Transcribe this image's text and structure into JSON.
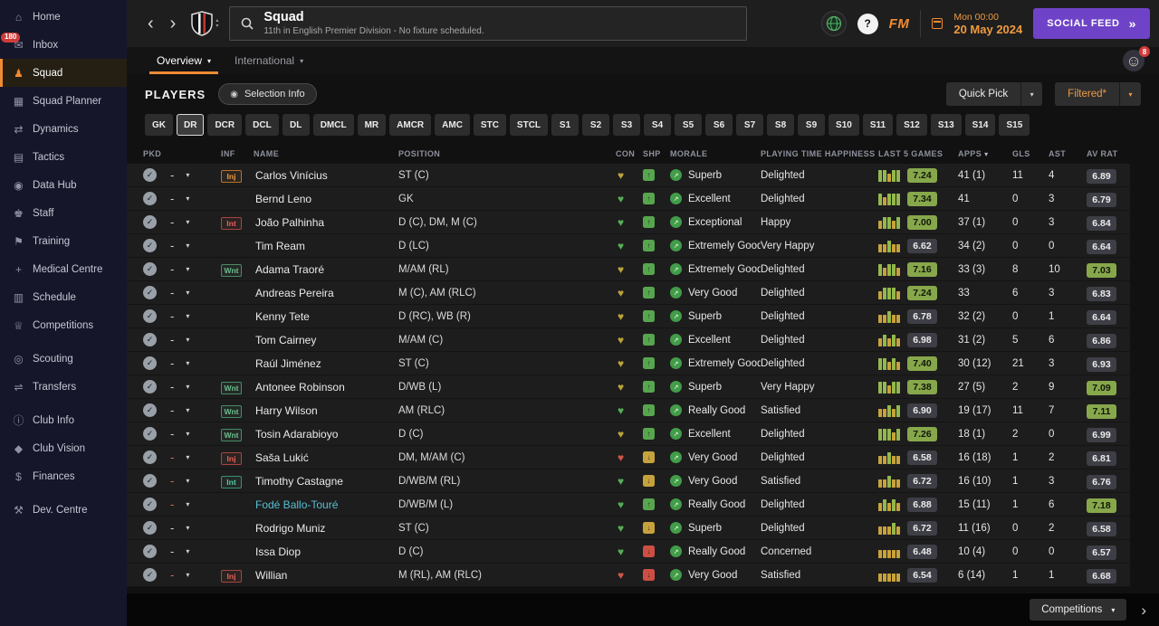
{
  "colors": {
    "accent_orange": "#ef8b33",
    "social_purple": "#6f43c8",
    "badge_green": "#87a74b",
    "morale_green": "#429c49"
  },
  "icons": {
    "back": "‹",
    "forward": "›",
    "chevron_up": "▴",
    "chevron_down": "▾",
    "row_chevron": "▾",
    "sort": "▾",
    "picked": "✓",
    "dash": "-",
    "con_heart": "♥",
    "morale_arrow": "↗",
    "shp_up": "↑",
    "shp_down": "↓",
    "double_chevron": "»",
    "selection_info": "◉",
    "avatar": "☺",
    "next": "›"
  },
  "sidebar": {
    "items": [
      {
        "id": "home",
        "label": "Home",
        "glyph": "⌂"
      },
      {
        "id": "inbox",
        "label": "Inbox",
        "glyph": "✉",
        "badge": "180"
      },
      {
        "id": "squad",
        "label": "Squad",
        "glyph": "♟",
        "active": true
      },
      {
        "id": "squad-planner",
        "label": "Squad Planner",
        "glyph": "▦"
      },
      {
        "id": "dynamics",
        "label": "Dynamics",
        "glyph": "⇄"
      },
      {
        "id": "tactics",
        "label": "Tactics",
        "glyph": "▤"
      },
      {
        "id": "data-hub",
        "label": "Data Hub",
        "glyph": "◉"
      },
      {
        "id": "staff",
        "label": "Staff",
        "glyph": "♚"
      },
      {
        "id": "training",
        "label": "Training",
        "glyph": "⚑"
      },
      {
        "id": "medical-centre",
        "label": "Medical Centre",
        "glyph": "+"
      },
      {
        "id": "schedule",
        "label": "Schedule",
        "glyph": "▥"
      },
      {
        "id": "competitions",
        "label": "Competitions",
        "glyph": "♕"
      },
      {
        "id": "scouting",
        "label": "Scouting",
        "glyph": "◎",
        "gap_before": true
      },
      {
        "id": "transfers",
        "label": "Transfers",
        "glyph": "⇌"
      },
      {
        "id": "club-info",
        "label": "Club Info",
        "glyph": "ⓘ",
        "gap_before": true
      },
      {
        "id": "club-vision",
        "label": "Club Vision",
        "glyph": "◆"
      },
      {
        "id": "finances",
        "label": "Finances",
        "glyph": "$"
      },
      {
        "id": "dev-centre",
        "label": "Dev. Centre",
        "glyph": "⚒",
        "gap_before": true
      }
    ]
  },
  "topbar": {
    "title": "Squad",
    "subtitle": "11th in English Premier Division - No fixture scheduled.",
    "help_icon": "?",
    "fm_logo": "FM",
    "time": "Mon 00:00",
    "date": "20 May 2024",
    "social_feed_label": "SOCIAL FEED"
  },
  "tabbar": {
    "tabs": [
      {
        "label": "Overview",
        "active": true
      },
      {
        "label": "International",
        "active": false
      }
    ],
    "notification_count": "8"
  },
  "toolbar": {
    "players_label": "PLAYERS",
    "selection_info_label": "Selection Info",
    "quick_pick_label": "Quick Pick",
    "filtered_label": "Filtered*"
  },
  "filters": [
    {
      "label": "GK"
    },
    {
      "label": "DR",
      "active": true
    },
    {
      "label": "DCR"
    },
    {
      "label": "DCL"
    },
    {
      "label": "DL"
    },
    {
      "label": "DMCL"
    },
    {
      "label": "MR"
    },
    {
      "label": "AMCR"
    },
    {
      "label": "AMC"
    },
    {
      "label": "STC"
    },
    {
      "label": "STCL"
    },
    {
      "label": "S1"
    },
    {
      "label": "S2"
    },
    {
      "label": "S3"
    },
    {
      "label": "S4"
    },
    {
      "label": "S5"
    },
    {
      "label": "S6"
    },
    {
      "label": "S7"
    },
    {
      "label": "S8"
    },
    {
      "label": "S9"
    },
    {
      "label": "S10"
    },
    {
      "label": "S11"
    },
    {
      "label": "S12"
    },
    {
      "label": "S13"
    },
    {
      "label": "S14"
    },
    {
      "label": "S15"
    }
  ],
  "table": {
    "columns": {
      "pkd": "PKD",
      "inf": "INF",
      "name": "NAME",
      "position": "POSITION",
      "con": "CON",
      "shp": "SHP",
      "morale": "MORALE",
      "happiness": "PLAYING TIME HAPPINESS",
      "last5": "LAST 5 GAMES",
      "apps": "APPS",
      "gls": "GLS",
      "ast": "AST",
      "avrat": "AV RAT"
    },
    "sorted_by": "APPS",
    "rows": [
      {
        "name": "Carlos Vinícius",
        "inf": "Inj",
        "inf_style": "inj-orange",
        "dash_red": false,
        "loan": false,
        "position": "ST (C)",
        "con": "yellow",
        "shp": "green-up",
        "morale": "Superb",
        "happiness": "Delighted",
        "bars": [
          "g",
          "g",
          "y",
          "g",
          "g"
        ],
        "l5": "7.24",
        "l5_green": true,
        "apps": "41 (1)",
        "gls": "11",
        "ast": "4",
        "avr": "6.89",
        "avr_green": false
      },
      {
        "name": "Bernd Leno",
        "inf": "",
        "inf_style": "",
        "dash_red": false,
        "loan": false,
        "position": "GK",
        "con": "green",
        "shp": "green-up",
        "morale": "Excellent",
        "happiness": "Delighted",
        "bars": [
          "g",
          "y",
          "g",
          "g",
          "g"
        ],
        "l5": "7.34",
        "l5_green": true,
        "apps": "41",
        "gls": "0",
        "ast": "3",
        "avr": "6.79",
        "avr_green": false
      },
      {
        "name": "João Palhinha",
        "inf": "Int",
        "inf_style": "inj-red",
        "dash_red": false,
        "loan": false,
        "position": "D (C), DM, M (C)",
        "con": "green",
        "shp": "green-up",
        "morale": "Exceptional",
        "happiness": "Happy",
        "bars": [
          "y",
          "g",
          "g",
          "y",
          "g"
        ],
        "l5": "7.00",
        "l5_green": true,
        "apps": "37 (1)",
        "gls": "0",
        "ast": "3",
        "avr": "6.84",
        "avr_green": false
      },
      {
        "name": "Tim Ream",
        "inf": "",
        "inf_style": "",
        "dash_red": false,
        "loan": false,
        "position": "D (LC)",
        "con": "green",
        "shp": "green-up",
        "morale": "Extremely Good",
        "happiness": "Very Happy",
        "bars": [
          "y",
          "y",
          "g",
          "y",
          "y"
        ],
        "l5": "6.62",
        "l5_green": false,
        "apps": "34 (2)",
        "gls": "0",
        "ast": "0",
        "avr": "6.64",
        "avr_green": false
      },
      {
        "name": "Adama Traoré",
        "inf": "Wnt",
        "inf_style": "wnt",
        "dash_red": false,
        "loan": false,
        "position": "M/AM (RL)",
        "con": "yellow",
        "shp": "green-up",
        "morale": "Extremely Good",
        "happiness": "Delighted",
        "bars": [
          "g",
          "y",
          "g",
          "g",
          "y"
        ],
        "l5": "7.16",
        "l5_green": true,
        "apps": "33 (3)",
        "gls": "8",
        "ast": "10",
        "avr": "7.03",
        "avr_green": true
      },
      {
        "name": "Andreas Pereira",
        "inf": "",
        "inf_style": "",
        "dash_red": false,
        "loan": false,
        "position": "M (C), AM (RLC)",
        "con": "yellow",
        "shp": "green-up",
        "morale": "Very Good",
        "happiness": "Delighted",
        "bars": [
          "y",
          "g",
          "g",
          "g",
          "y"
        ],
        "l5": "7.24",
        "l5_green": true,
        "apps": "33",
        "gls": "6",
        "ast": "3",
        "avr": "6.83",
        "avr_green": false
      },
      {
        "name": "Kenny Tete",
        "inf": "",
        "inf_style": "",
        "dash_red": false,
        "loan": false,
        "position": "D (RC), WB (R)",
        "con": "yellow",
        "shp": "green-up",
        "morale": "Superb",
        "happiness": "Delighted",
        "bars": [
          "y",
          "y",
          "g",
          "y",
          "y"
        ],
        "l5": "6.78",
        "l5_green": false,
        "apps": "32 (2)",
        "gls": "0",
        "ast": "1",
        "avr": "6.64",
        "avr_green": false
      },
      {
        "name": "Tom Cairney",
        "inf": "",
        "inf_style": "",
        "dash_red": false,
        "loan": false,
        "position": "M/AM (C)",
        "con": "yellow",
        "shp": "green-up",
        "morale": "Excellent",
        "happiness": "Delighted",
        "bars": [
          "y",
          "g",
          "y",
          "g",
          "y"
        ],
        "l5": "6.98",
        "l5_green": false,
        "apps": "31 (2)",
        "gls": "5",
        "ast": "6",
        "avr": "6.86",
        "avr_green": false
      },
      {
        "name": "Raúl Jiménez",
        "inf": "",
        "inf_style": "",
        "dash_red": false,
        "loan": false,
        "position": "ST (C)",
        "con": "yellow",
        "shp": "green-up",
        "morale": "Extremely Good",
        "happiness": "Delighted",
        "bars": [
          "g",
          "g",
          "y",
          "g",
          "y"
        ],
        "l5": "7.40",
        "l5_green": true,
        "apps": "30 (12)",
        "gls": "21",
        "ast": "3",
        "avr": "6.93",
        "avr_green": false
      },
      {
        "name": "Antonee Robinson",
        "inf": "Wnt",
        "inf_style": "wnt",
        "dash_red": false,
        "loan": false,
        "position": "D/WB (L)",
        "con": "yellow",
        "shp": "green-up",
        "morale": "Superb",
        "happiness": "Very Happy",
        "bars": [
          "g",
          "g",
          "y",
          "g",
          "g"
        ],
        "l5": "7.38",
        "l5_green": true,
        "apps": "27 (5)",
        "gls": "2",
        "ast": "9",
        "avr": "7.09",
        "avr_green": true
      },
      {
        "name": "Harry Wilson",
        "inf": "Wnt",
        "inf_style": "wnt",
        "dash_red": false,
        "loan": false,
        "position": "AM (RLC)",
        "con": "green",
        "shp": "green-up",
        "morale": "Really Good",
        "happiness": "Satisfied",
        "bars": [
          "y",
          "y",
          "g",
          "y",
          "g"
        ],
        "l5": "6.90",
        "l5_green": false,
        "apps": "19 (17)",
        "gls": "11",
        "ast": "7",
        "avr": "7.11",
        "avr_green": true
      },
      {
        "name": "Tosin Adarabioyo",
        "inf": "Wnt",
        "inf_style": "wnt",
        "dash_red": false,
        "loan": false,
        "position": "D (C)",
        "con": "yellow",
        "shp": "green-up",
        "morale": "Excellent",
        "happiness": "Delighted",
        "bars": [
          "g",
          "g",
          "g",
          "y",
          "g"
        ],
        "l5": "7.26",
        "l5_green": true,
        "apps": "18 (1)",
        "gls": "2",
        "ast": "0",
        "avr": "6.99",
        "avr_green": false
      },
      {
        "name": "Saša Lukić",
        "inf": "Inj",
        "inf_style": "inj-red",
        "dash_red": true,
        "loan": false,
        "position": "DM, M/AM (C)",
        "con": "red",
        "shp": "yellow-down",
        "morale": "Very Good",
        "happiness": "Delighted",
        "bars": [
          "y",
          "y",
          "g",
          "y",
          "y"
        ],
        "l5": "6.58",
        "l5_green": false,
        "apps": "16 (18)",
        "gls": "1",
        "ast": "2",
        "avr": "6.81",
        "avr_green": false
      },
      {
        "name": "Timothy Castagne",
        "inf": "Int",
        "inf_style": "int-green",
        "dash_red": true,
        "loan": false,
        "position": "D/WB/M (RL)",
        "con": "green",
        "shp": "yellow-down",
        "morale": "Very Good",
        "happiness": "Satisfied",
        "bars": [
          "y",
          "y",
          "g",
          "y",
          "y"
        ],
        "l5": "6.72",
        "l5_green": false,
        "apps": "16 (10)",
        "gls": "1",
        "ast": "3",
        "avr": "6.76",
        "avr_green": false
      },
      {
        "name": "Fodé Ballo-Touré",
        "inf": "",
        "inf_style": "",
        "dash_red": true,
        "loan": true,
        "position": "D/WB/M (L)",
        "con": "green",
        "shp": "green-up",
        "morale": "Really Good",
        "happiness": "Delighted",
        "bars": [
          "y",
          "g",
          "y",
          "g",
          "y"
        ],
        "l5": "6.88",
        "l5_green": false,
        "apps": "15 (11)",
        "gls": "1",
        "ast": "6",
        "avr": "7.18",
        "avr_green": true
      },
      {
        "name": "Rodrigo Muniz",
        "inf": "",
        "inf_style": "",
        "dash_red": false,
        "loan": false,
        "position": "ST (C)",
        "con": "green",
        "shp": "yellow-down",
        "morale": "Superb",
        "happiness": "Delighted",
        "bars": [
          "y",
          "y",
          "y",
          "g",
          "y"
        ],
        "l5": "6.72",
        "l5_green": false,
        "apps": "11 (16)",
        "gls": "0",
        "ast": "2",
        "avr": "6.58",
        "avr_green": false
      },
      {
        "name": "Issa Diop",
        "inf": "",
        "inf_style": "",
        "dash_red": false,
        "loan": false,
        "position": "D (C)",
        "con": "green",
        "shp": "red-down",
        "morale": "Really Good",
        "happiness": "Concerned",
        "bars": [
          "y",
          "y",
          "y",
          "y",
          "y"
        ],
        "l5": "6.48",
        "l5_green": false,
        "apps": "10 (4)",
        "gls": "0",
        "ast": "0",
        "avr": "6.57",
        "avr_green": false
      },
      {
        "name": "Willian",
        "inf": "Inj",
        "inf_style": "inj-red",
        "dash_red": true,
        "loan": false,
        "position": "M (RL), AM (RLC)",
        "con": "red",
        "shp": "red-down",
        "morale": "Very Good",
        "happiness": "Satisfied",
        "bars": [
          "y",
          "y",
          "y",
          "y",
          "y"
        ],
        "l5": "6.54",
        "l5_green": false,
        "apps": "6 (14)",
        "gls": "1",
        "ast": "1",
        "avr": "6.68",
        "avr_green": false
      }
    ]
  },
  "footer": {
    "competitions_label": "Competitions"
  }
}
